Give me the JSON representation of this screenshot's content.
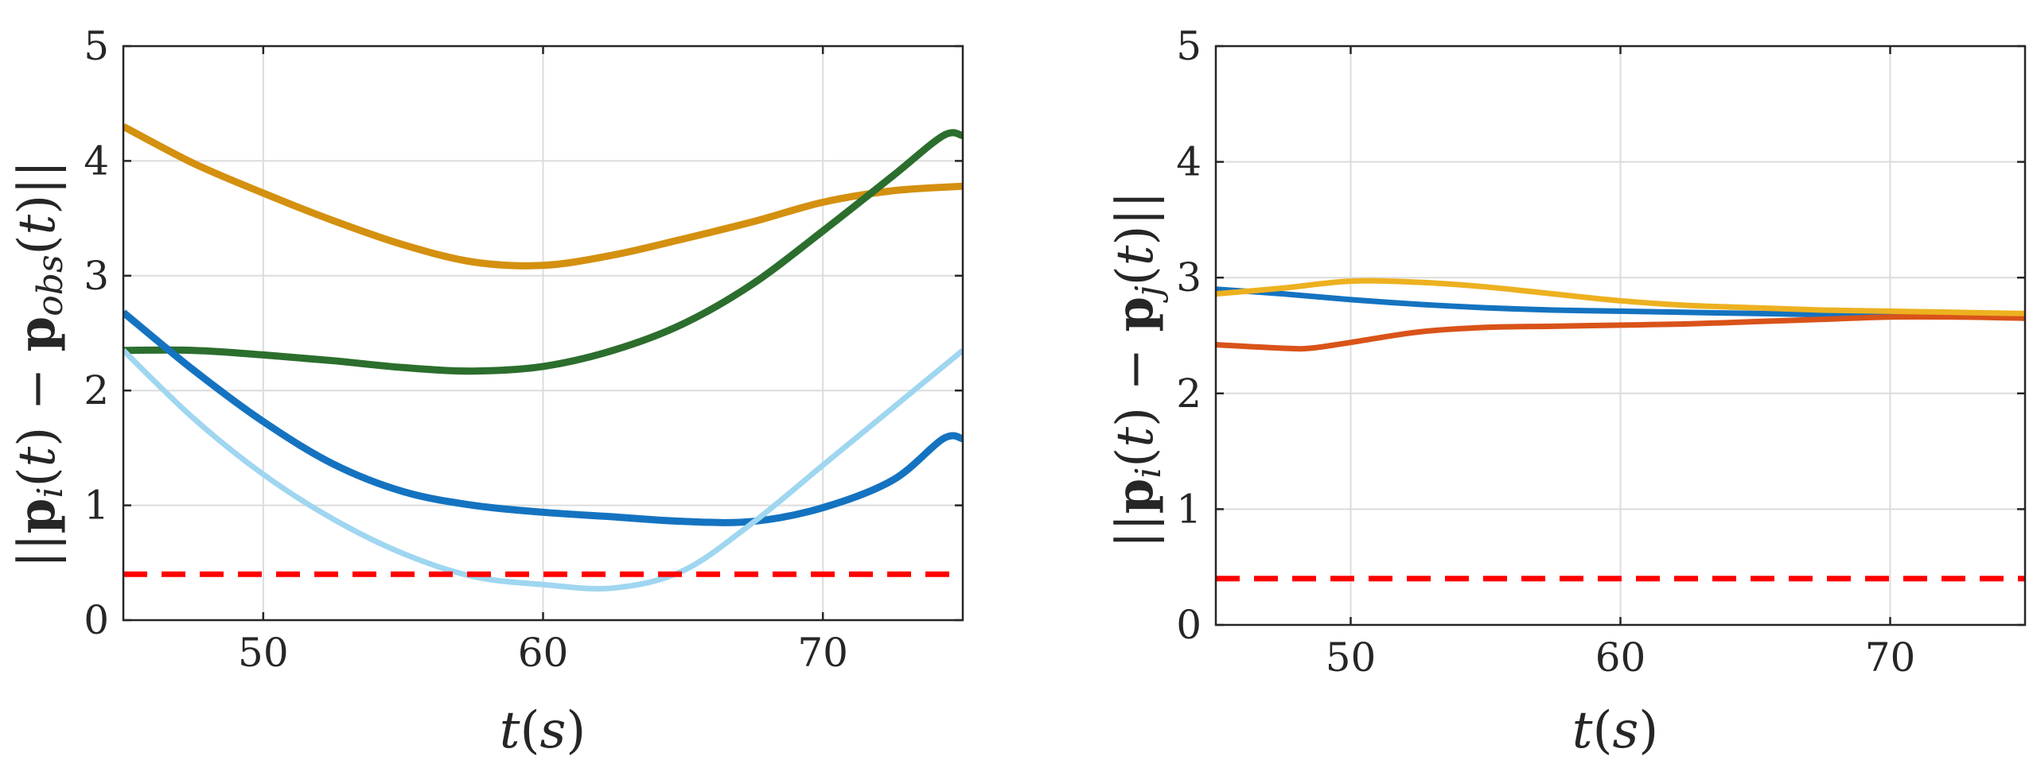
{
  "chart_data": [
    {
      "type": "line",
      "id": "left",
      "title": "",
      "xlabel": "t(s)",
      "ylabel": "||p_i(t) - p_obs(t)||",
      "xlim": [
        45,
        75
      ],
      "ylim": [
        0,
        5
      ],
      "xticks": [
        50,
        60,
        70
      ],
      "yticks": [
        0,
        1,
        2,
        3,
        4,
        5
      ],
      "grid": true,
      "series": [
        {
          "name": "agent-orange",
          "color": "#D4900F",
          "width": 9,
          "dashed": false,
          "x": [
            45,
            47.5,
            50,
            52.5,
            55,
            57.5,
            60,
            62.5,
            65,
            67.5,
            70,
            72.5,
            75
          ],
          "y": [
            4.3,
            3.98,
            3.72,
            3.48,
            3.27,
            3.12,
            3.09,
            3.18,
            3.32,
            3.47,
            3.64,
            3.74,
            3.78
          ]
        },
        {
          "name": "agent-darkgreen",
          "color": "#2C6E2D",
          "width": 9,
          "dashed": false,
          "x": [
            45,
            47.5,
            50,
            52.5,
            55,
            57.5,
            60,
            62.5,
            65,
            67.5,
            70,
            72.5,
            74.3,
            75
          ],
          "y": [
            2.35,
            2.35,
            2.31,
            2.26,
            2.2,
            2.17,
            2.21,
            2.35,
            2.58,
            2.93,
            3.39,
            3.87,
            4.22,
            4.22
          ]
        },
        {
          "name": "agent-blue",
          "color": "#1473C0",
          "width": 9,
          "dashed": false,
          "x": [
            45,
            47.5,
            50,
            52.5,
            55,
            57.5,
            60,
            62.5,
            65,
            67.5,
            70,
            72.5,
            74.3,
            75
          ],
          "y": [
            2.68,
            2.18,
            1.73,
            1.36,
            1.12,
            1.0,
            0.94,
            0.9,
            0.86,
            0.86,
            0.98,
            1.22,
            1.58,
            1.58
          ]
        },
        {
          "name": "agent-lightblue",
          "color": "#9FD6F0",
          "width": 7,
          "dashed": false,
          "x": [
            45,
            47.5,
            50,
            52.5,
            55,
            57.5,
            60,
            62.5,
            65,
            67.5,
            70,
            72.5,
            75
          ],
          "y": [
            2.35,
            1.76,
            1.27,
            0.88,
            0.58,
            0.38,
            0.31,
            0.28,
            0.43,
            0.85,
            1.35,
            1.85,
            2.35
          ]
        },
        {
          "name": "safety-threshold",
          "color": "#FF0000",
          "width": 7,
          "dashed": true,
          "x": [
            45,
            75
          ],
          "y": [
            0.4,
            0.4
          ]
        }
      ]
    },
    {
      "type": "line",
      "id": "right",
      "title": "",
      "xlabel": "t(s)",
      "ylabel": "||p_i(t) - p_j(t)||",
      "xlim": [
        45,
        75
      ],
      "ylim": [
        0,
        5
      ],
      "xticks": [
        50,
        60,
        70
      ],
      "yticks": [
        0,
        1,
        2,
        3,
        4,
        5
      ],
      "grid": true,
      "series": [
        {
          "name": "pair-blue",
          "color": "#1473C0",
          "width": 7,
          "dashed": false,
          "x": [
            45,
            47.5,
            50,
            52.5,
            55,
            57.5,
            60,
            62.5,
            65,
            67.5,
            70,
            72.5,
            75
          ],
          "y": [
            2.9,
            2.86,
            2.81,
            2.77,
            2.74,
            2.72,
            2.71,
            2.7,
            2.69,
            2.68,
            2.67,
            2.67,
            2.67
          ]
        },
        {
          "name": "pair-red",
          "color": "#D95319",
          "width": 7,
          "dashed": false,
          "x": [
            45,
            47.5,
            48.5,
            50,
            52.5,
            55,
            57.5,
            60,
            62.5,
            65,
            67.5,
            70,
            72.5,
            75
          ],
          "y": [
            2.42,
            2.39,
            2.39,
            2.44,
            2.53,
            2.57,
            2.58,
            2.59,
            2.6,
            2.62,
            2.64,
            2.66,
            2.66,
            2.65
          ]
        },
        {
          "name": "pair-yellow",
          "color": "#EDB120",
          "width": 7,
          "dashed": false,
          "x": [
            45,
            47.5,
            50,
            52.5,
            55,
            57.5,
            60,
            62.5,
            65,
            67.5,
            70,
            72.5,
            75
          ],
          "y": [
            2.86,
            2.91,
            2.97,
            2.96,
            2.92,
            2.86,
            2.8,
            2.76,
            2.74,
            2.72,
            2.71,
            2.7,
            2.69
          ]
        },
        {
          "name": "safety-threshold",
          "color": "#FF0000",
          "width": 7,
          "dashed": true,
          "x": [
            45,
            75
          ],
          "y": [
            0.4,
            0.4
          ]
        }
      ]
    }
  ]
}
